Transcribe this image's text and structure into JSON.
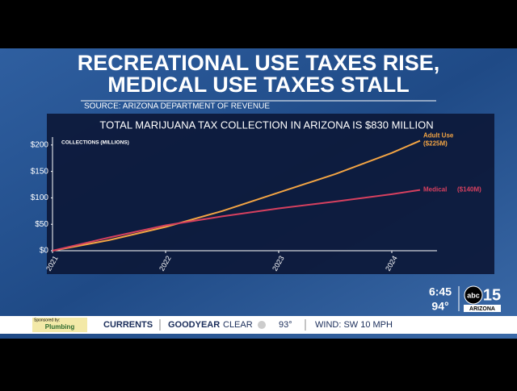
{
  "headline": [
    "RECREATIONAL USE TAXES RISE,",
    "MEDICAL USE TAXES STALL"
  ],
  "source": "SOURCE: ARIZONA DEPARTMENT OF REVENUE",
  "chart_data": {
    "type": "line",
    "title": "TOTAL MARIJUANA TAX COLLECTION IN ARIZONA IS $830 MILLION",
    "y_label": "COLLECTIONS (MILLIONS)",
    "x": [
      2021,
      2021.5,
      2022,
      2022.5,
      2023,
      2023.5,
      2024,
      2024.25
    ],
    "series": [
      {
        "name": "Adult Use",
        "total_label": "($225M)",
        "color": "#f2a444",
        "values": [
          0,
          20,
          45,
          75,
          110,
          145,
          185,
          208
        ]
      },
      {
        "name": "Medical",
        "total_label": "($140M)",
        "color": "#d6405f",
        "values": [
          0,
          25,
          48,
          65,
          80,
          93,
          107,
          115
        ]
      }
    ],
    "xlim": [
      2021,
      2024.4
    ],
    "xticks": [
      2021,
      2022,
      2023,
      2024
    ],
    "ylim": [
      0,
      215
    ],
    "yticks": [
      {
        "value": 0,
        "label": "$0"
      },
      {
        "value": 50,
        "label": "$50"
      },
      {
        "value": 100,
        "label": "$100"
      },
      {
        "value": 150,
        "label": "$150"
      },
      {
        "value": 200,
        "label": "$200"
      }
    ]
  },
  "clock": {
    "time": "6:45",
    "temp": "94°"
  },
  "logo": {
    "abc": "abc",
    "num": "15",
    "region": "ARIZONA"
  },
  "ticker": {
    "sponsor": "Sponsored by:",
    "sponsor_name": "Plumbing",
    "segment": "CURRENTS",
    "city": "GOODYEAR",
    "sky": "CLEAR",
    "temp": "93°",
    "wind": "WIND: SW 10 MPH"
  }
}
